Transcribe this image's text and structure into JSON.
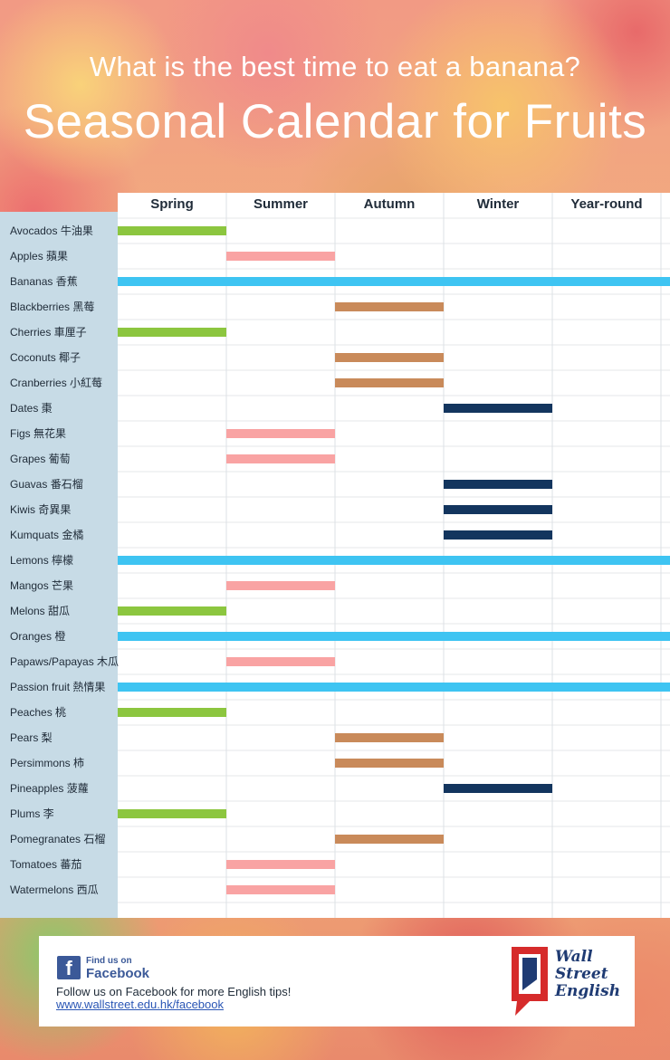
{
  "header": {
    "subtitle": "What is the best time to eat a banana?",
    "title": "Seasonal Calendar for Fruits"
  },
  "colors": {
    "Spring": "#8cc63f",
    "Summer": "#f9a3a3",
    "Autumn": "#c98a5a",
    "Winter": "#13355e",
    "Year-round": "#3ec4f2",
    "label_panel": "#c7dbe6"
  },
  "chart_data": {
    "type": "table",
    "columns": [
      "Spring",
      "Summer",
      "Autumn",
      "Winter",
      "Year-round"
    ],
    "rows": [
      {
        "label": "Avocados 牛油果",
        "season": "Spring"
      },
      {
        "label": "Apples 蘋果",
        "season": "Summer"
      },
      {
        "label": "Bananas 香蕉",
        "season": "Year-round"
      },
      {
        "label": "Blackberries 黑莓",
        "season": "Autumn"
      },
      {
        "label": "Cherries 車厘子",
        "season": "Spring"
      },
      {
        "label": "Coconuts 椰子",
        "season": "Autumn"
      },
      {
        "label": "Cranberries 小紅莓",
        "season": "Autumn"
      },
      {
        "label": "Dates 棗",
        "season": "Winter"
      },
      {
        "label": "Figs 無花果",
        "season": "Summer"
      },
      {
        "label": "Grapes 葡萄",
        "season": "Summer"
      },
      {
        "label": "Guavas 番石榴",
        "season": "Winter"
      },
      {
        "label": "Kiwis 奇異果",
        "season": "Winter"
      },
      {
        "label": "Kumquats 金橘",
        "season": "Winter"
      },
      {
        "label": "Lemons 檸檬",
        "season": "Year-round"
      },
      {
        "label": "Mangos 芒果",
        "season": "Summer"
      },
      {
        "label": "Melons 甜瓜",
        "season": "Spring"
      },
      {
        "label": "Oranges 橙",
        "season": "Year-round"
      },
      {
        "label": "Papaws/Papayas 木瓜",
        "season": "Summer"
      },
      {
        "label": "Passion fruit 熱情果",
        "season": "Year-round"
      },
      {
        "label": "Peaches 桃",
        "season": "Spring"
      },
      {
        "label": "Pears 梨",
        "season": "Autumn"
      },
      {
        "label": "Persimmons 柿",
        "season": "Autumn"
      },
      {
        "label": "Pineapples 菠蘿",
        "season": "Winter"
      },
      {
        "label": "Plums 李",
        "season": "Spring"
      },
      {
        "label": "Pomegranates 石榴",
        "season": "Autumn"
      },
      {
        "label": "Tomatoes 蕃茄",
        "season": "Summer"
      },
      {
        "label": "Watermelons 西瓜",
        "season": "Summer"
      }
    ]
  },
  "footer": {
    "find_us": "Find us on",
    "facebook": "Facebook",
    "fb_icon": "f",
    "follow_text": "Follow us on Facebook for more English tips!",
    "link": "www.wallstreet.edu.hk/facebook",
    "logo_text": [
      "Wall",
      "Street",
      "English"
    ]
  }
}
